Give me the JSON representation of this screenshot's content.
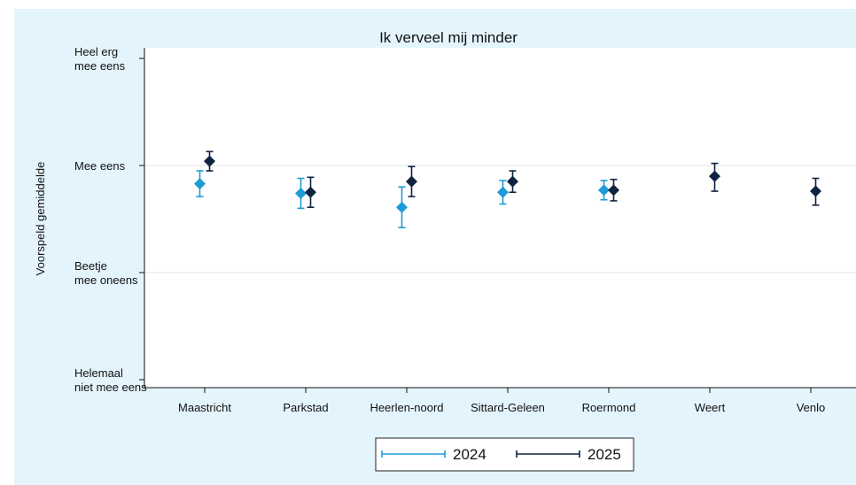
{
  "chart_data": {
    "type": "scatter",
    "title": "Ik verveel mij minder",
    "xlabel": "",
    "ylabel": "Voorspeld gemiddelde",
    "categories": [
      "Maastricht",
      "Parkstad",
      "Heerlen-noord",
      "Sittard-Geleen",
      "Roermond",
      "Weert",
      "Venlo"
    ],
    "y_ticks": [
      {
        "value": 1,
        "lines": [
          "Helemaal",
          "niet mee eens"
        ]
      },
      {
        "value": 2,
        "lines": [
          "Beetje",
          "mee oneens"
        ]
      },
      {
        "value": 3,
        "lines": [
          "Mee eens"
        ]
      },
      {
        "value": 4,
        "lines": [
          "Heel erg",
          "mee eens"
        ]
      }
    ],
    "ylim": [
      0.9,
      4.1
    ],
    "grid": true,
    "legend_position": "bottom",
    "series": [
      {
        "name": "2024",
        "color": "#1f9bd6",
        "marker": "diamond",
        "points": [
          {
            "category": "Maastricht",
            "y": 2.83,
            "low": 2.71,
            "high": 2.95
          },
          {
            "category": "Parkstad",
            "y": 2.74,
            "low": 2.6,
            "high": 2.88
          },
          {
            "category": "Heerlen-noord",
            "y": 2.61,
            "low": 2.42,
            "high": 2.8
          },
          {
            "category": "Sittard-Geleen",
            "y": 2.75,
            "low": 2.64,
            "high": 2.86
          },
          {
            "category": "Roermond",
            "y": 2.77,
            "low": 2.68,
            "high": 2.86
          }
        ]
      },
      {
        "name": "2025",
        "color": "#0f2340",
        "marker": "diamond",
        "points": [
          {
            "category": "Maastricht",
            "y": 3.04,
            "low": 2.95,
            "high": 3.13
          },
          {
            "category": "Parkstad",
            "y": 2.75,
            "low": 2.61,
            "high": 2.89
          },
          {
            "category": "Heerlen-noord",
            "y": 2.85,
            "low": 2.71,
            "high": 2.99
          },
          {
            "category": "Sittard-Geleen",
            "y": 2.85,
            "low": 2.75,
            "high": 2.95
          },
          {
            "category": "Roermond",
            "y": 2.77,
            "low": 2.67,
            "high": 2.87
          },
          {
            "category": "Weert",
            "y": 2.9,
            "low": 2.76,
            "high": 3.02
          },
          {
            "category": "Venlo",
            "y": 2.76,
            "low": 2.63,
            "high": 2.88
          }
        ]
      }
    ]
  }
}
